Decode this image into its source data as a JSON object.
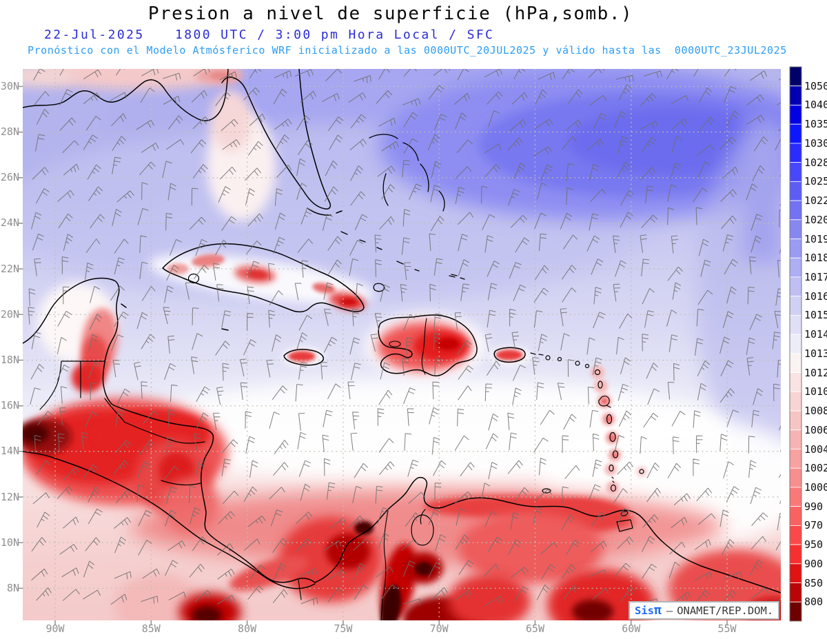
{
  "header": {
    "title": "Presion a nivel de superficie (hPa,somb.)",
    "date": "22-Jul-2025",
    "time": "1800 UTC / 3:00 pm Hora Local / SFC",
    "forecast": "Pronóstico con el Modelo Atmósferico WRF inicializado a las 0000UTC_20JUL2025 y válido hasta las  0000UTC_23JUL2025"
  },
  "map": {
    "lat_labels": [
      "30N",
      "28N",
      "26N",
      "24N",
      "22N",
      "20N",
      "18N",
      "16N",
      "14N",
      "12N",
      "10N",
      "8N"
    ],
    "lon_labels": [
      "90W",
      "85W",
      "80W",
      "75W",
      "70W",
      "65W",
      "60W",
      "55W"
    ],
    "extent": {
      "lat": [
        "8N",
        "30N"
      ],
      "lon": [
        "90W",
        "55W"
      ]
    },
    "shaded_field": "Presion a nivel de superficie (hPa)",
    "symbols": "wind-barbs"
  },
  "colorbar": {
    "units": "hPa",
    "labels": [
      "1050",
      "1040",
      "1035",
      "1030",
      "1028",
      "1025",
      "1022",
      "1020",
      "1019",
      "1018",
      "1017",
      "1016",
      "1015",
      "1014",
      "1013",
      "1012",
      "1010",
      "1008",
      "1006",
      "1004",
      "1002",
      "1000",
      "990",
      "970",
      "950",
      "900",
      "850",
      "800"
    ],
    "colors": [
      "#000069",
      "#0000b0",
      "#0000e3",
      "#0d17ff",
      "#2b2bff",
      "#4747fb",
      "#5d5df6",
      "#7272f2",
      "#8787f2",
      "#9b9bf3",
      "#aeaef4",
      "#bfbff4",
      "#d0d0f4",
      "#dfdff6",
      "#ededf8",
      "#fbf2f2",
      "#fae3e3",
      "#f8d4d4",
      "#f7c4c4",
      "#f7b3b3",
      "#f7a1a1",
      "#f88e8e",
      "#f97979",
      "#fa6262",
      "#fb4949",
      "#f62f2f",
      "#e01212",
      "#b90505",
      "#6f0000"
    ]
  },
  "watermark": {
    "brand": "Sis",
    "pi": "π",
    "sep": "–",
    "org": "ONAMET/REP.DOM."
  },
  "colors": {
    "title_text": "#0a0a0a",
    "date_text": "#2b2bd4",
    "forecast_text": "#2b9df5",
    "axis_text": "#8f8f8f",
    "grid": "#c0c0b4",
    "wind_barbs": "#6f6f6f",
    "coastline": "#000000"
  }
}
